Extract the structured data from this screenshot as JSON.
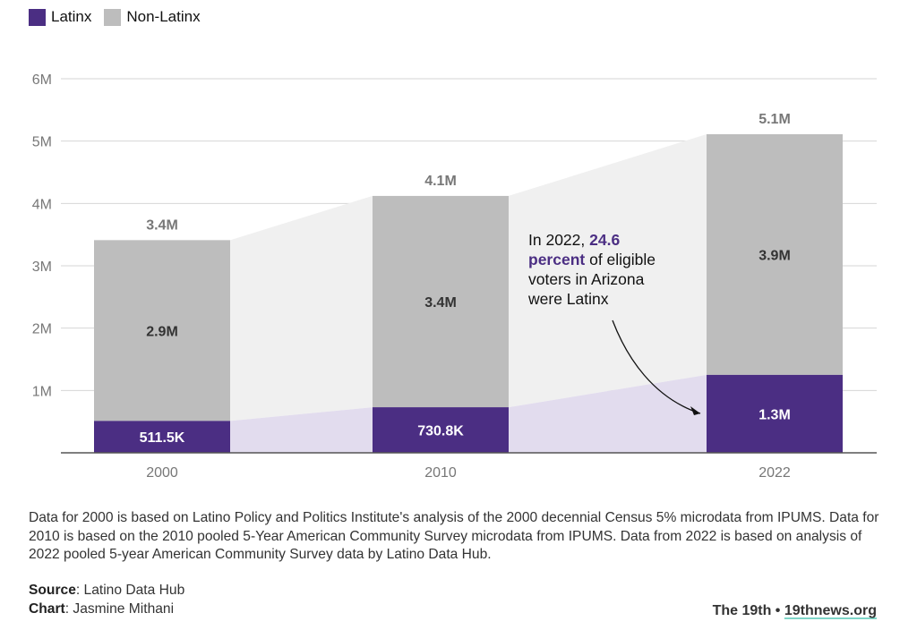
{
  "legend": {
    "items": [
      {
        "label": "Latinx",
        "color": "#4b2e83"
      },
      {
        "label": "Non-Latinx",
        "color": "#bdbdbd"
      }
    ]
  },
  "chart_data": {
    "type": "bar",
    "stacked": true,
    "categories": [
      "2000",
      "2010",
      "2022"
    ],
    "series": [
      {
        "name": "Latinx",
        "values": [
          511500,
          730800,
          1250000
        ],
        "labels": [
          "511.5K",
          "730.8K",
          "1.3M"
        ],
        "color": "#4b2e83"
      },
      {
        "name": "Non-Latinx",
        "values": [
          2900000,
          3390000,
          3860000
        ],
        "labels": [
          "2.9M",
          "3.4M",
          "3.9M"
        ],
        "color": "#bdbdbd"
      }
    ],
    "totals": [
      3411500,
      4120800,
      5110000
    ],
    "total_labels": [
      "3.4M",
      "4.1M",
      "5.1M"
    ],
    "ylim": [
      0,
      6000000
    ],
    "yticks": [
      1000000,
      2000000,
      3000000,
      4000000,
      5000000,
      6000000
    ],
    "ytick_labels": [
      "1M",
      "2M",
      "3M",
      "4M",
      "5M",
      "6M"
    ],
    "grid": true,
    "legend_position": "top-left",
    "annotation": {
      "lines": [
        [
          {
            "t": "In 2022, ",
            "hl": false
          },
          {
            "t": "24.6",
            "hl": true
          }
        ],
        [
          {
            "t": "percent",
            "hl": true
          },
          {
            "t": " of eligible",
            "hl": false
          }
        ],
        [
          {
            "t": "voters in Arizona",
            "hl": false
          }
        ],
        [
          {
            "t": "were Latinx",
            "hl": false
          }
        ]
      ],
      "highlight_color": "#4b2e83",
      "points_to": "2022"
    }
  },
  "note": "Data for 2000 is based on Latino Policy and Politics Institute's analysis of the 2000 decennial Census 5% microdata from IPUMS. Data for 2010 is based on the 2010 pooled 5-Year American Community Survey microdata from IPUMS. Data from 2022 is based on analysis of 2022 pooled 5-year American Community Survey data by Latino Data Hub.",
  "credits": {
    "source_label": "Source",
    "source_value": ": Latino Data Hub",
    "chart_label": "Chart",
    "chart_value": ": Jasmine Mithani"
  },
  "brand": {
    "name": "The 19th",
    "separator": " • ",
    "site": "19thnews.org"
  }
}
